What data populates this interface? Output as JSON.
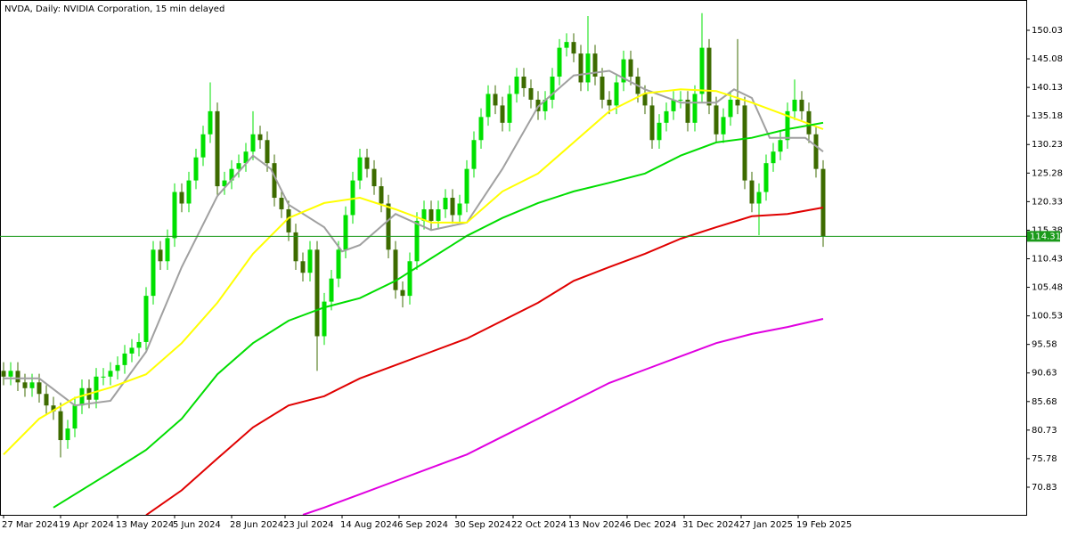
{
  "chart_data": {
    "type": "candlestick",
    "title": "NVDA, Daily:  NVIDIA Corporation, 15 min delayed",
    "xlim": [
      -1,
      287
    ],
    "ylim": [
      66.04,
      155.28
    ],
    "xticks": [
      {
        "value": 0,
        "label": "27 Mar 2024"
      },
      {
        "value": 16,
        "label": "19 Apr 2024"
      },
      {
        "value": 32,
        "label": "13 May 2024"
      },
      {
        "value": 48,
        "label": "5 Jun 2024"
      },
      {
        "value": 64,
        "label": "28 Jun 2024"
      },
      {
        "value": 79,
        "label": "23 Jul 2024"
      },
      {
        "value": 95,
        "label": "14 Aug 2024"
      },
      {
        "value": 111,
        "label": "6 Sep 2024"
      },
      {
        "value": 127,
        "label": "30 Sep 2024"
      },
      {
        "value": 143,
        "label": "22 Oct 2024"
      },
      {
        "value": 159,
        "label": "13 Nov 2024"
      },
      {
        "value": 175,
        "label": "6 Dec 2024"
      },
      {
        "value": 191,
        "label": "31 Dec 2024"
      },
      {
        "value": 207,
        "label": "27 Jan 2025"
      },
      {
        "value": 223,
        "label": "19 Feb 2025"
      }
    ],
    "yticks": [
      150.03,
      145.08,
      140.13,
      135.18,
      130.23,
      125.28,
      120.33,
      115.38,
      110.43,
      105.48,
      100.53,
      95.58,
      90.63,
      85.68,
      80.73,
      75.78,
      70.83
    ],
    "up_color": "#00e000",
    "down_color": "#3d6b00",
    "x": [
      0,
      2,
      4,
      6,
      8,
      10,
      12,
      14,
      16,
      18,
      20,
      22,
      24,
      26,
      28,
      30,
      32,
      34,
      36,
      38,
      40,
      42,
      44,
      46,
      48,
      50,
      52,
      54,
      56,
      58,
      60,
      62,
      64,
      66,
      68,
      70,
      72,
      74,
      76,
      78,
      80,
      82,
      84,
      86,
      88,
      90,
      92,
      94,
      96,
      98,
      100,
      102,
      104,
      106,
      108,
      110,
      112,
      114,
      116,
      118,
      120,
      122,
      124,
      126,
      128,
      130,
      132,
      134,
      136,
      138,
      140,
      142,
      144,
      146,
      148,
      150,
      152,
      154,
      156,
      158,
      160,
      162,
      164,
      166,
      168,
      170,
      172,
      174,
      176,
      178,
      180,
      182,
      184,
      186,
      188,
      190,
      192,
      194,
      196,
      198,
      200,
      202,
      204,
      206,
      208,
      210,
      212,
      214,
      216,
      218,
      220,
      222,
      224,
      226,
      228,
      230
    ],
    "open": [
      91,
      90,
      91,
      89,
      88,
      89,
      87,
      85,
      84,
      79,
      81,
      85,
      88,
      86,
      90,
      90,
      91,
      92,
      94,
      95,
      96,
      104,
      112,
      110,
      114,
      122,
      120,
      124,
      128,
      132,
      136,
      123,
      124,
      126,
      127,
      129,
      132,
      131,
      127,
      121,
      119,
      115,
      110,
      108,
      112,
      97,
      103,
      107,
      112,
      118,
      124,
      128,
      126,
      123,
      120,
      112,
      105,
      104,
      110,
      117,
      119,
      117,
      119,
      121,
      118,
      120,
      126,
      131,
      135,
      139,
      137,
      134,
      139,
      142,
      140,
      138,
      136,
      138,
      142,
      147,
      148,
      146,
      141,
      146,
      142,
      138,
      137,
      141,
      145,
      142,
      139,
      137,
      131,
      134,
      136,
      138,
      138,
      134,
      139,
      147,
      137,
      132,
      135,
      138,
      137,
      124,
      120,
      122,
      127,
      129,
      131,
      136,
      138,
      136,
      132,
      126
    ],
    "high": [
      92.5,
      92.5,
      92.5,
      90.5,
      90.5,
      90.5,
      88.5,
      86.5,
      85.5,
      82.5,
      86.5,
      89.5,
      89.5,
      91.5,
      91.5,
      92.5,
      93.5,
      95.5,
      96.5,
      97.5,
      105.5,
      113.5,
      113.5,
      115.5,
      123.5,
      123.5,
      125.5,
      129.5,
      133.5,
      141,
      137.5,
      125.5,
      127.5,
      128.5,
      130.5,
      136,
      133.5,
      132.5,
      128.5,
      122.5,
      120.5,
      116.5,
      111.5,
      113.5,
      113.5,
      104.5,
      108.5,
      113.5,
      119.5,
      125.5,
      129.5,
      129.5,
      127.5,
      124.5,
      121.5,
      113.5,
      106.5,
      111.5,
      118.5,
      120.5,
      120.5,
      120.5,
      122.5,
      122.5,
      121.5,
      127.5,
      132.5,
      136.5,
      140.5,
      140.5,
      138.5,
      140.5,
      143.5,
      143.5,
      141.5,
      139.5,
      139.5,
      143.5,
      148.5,
      149.5,
      149.5,
      147.5,
      152.5,
      147.5,
      143.5,
      139.5,
      142.5,
      146.5,
      146.5,
      143.5,
      140.5,
      138.5,
      135.5,
      137.5,
      139.5,
      139.5,
      139.5,
      140.5,
      153,
      148.5,
      138.5,
      136.5,
      139.5,
      148.5,
      138.5,
      125.5,
      123.5,
      128.5,
      130.5,
      132.5,
      137.5,
      141.5,
      139.5,
      137.5,
      133.5,
      127.5
    ],
    "low": [
      88.5,
      88.5,
      87.5,
      86.5,
      86.5,
      85.5,
      83.5,
      82.5,
      76,
      77.5,
      79.5,
      83.5,
      84.5,
      84.5,
      88.5,
      88.5,
      89.5,
      90.5,
      92.5,
      93.5,
      94.5,
      102.5,
      108.5,
      108.5,
      112.5,
      118.5,
      118.5,
      122.5,
      126.5,
      130.5,
      121.5,
      121.5,
      122.5,
      124.5,
      125.5,
      127.5,
      129.5,
      125.5,
      119.5,
      117.5,
      113.5,
      108.5,
      106.5,
      106.5,
      91,
      95.5,
      101.5,
      105.5,
      110.5,
      116.5,
      122.5,
      124.5,
      121.5,
      118.5,
      110.5,
      103.5,
      102,
      102.5,
      108.5,
      115.5,
      115.5,
      115.5,
      117.5,
      116.5,
      116.5,
      118.5,
      124.5,
      129.5,
      133.5,
      135.5,
      132.5,
      132.5,
      137.5,
      138.5,
      136.5,
      134.5,
      134.5,
      136.5,
      140.5,
      145.5,
      144.5,
      139.5,
      139.5,
      140.5,
      136.5,
      135.5,
      135.5,
      139.5,
      140.5,
      137.5,
      135.5,
      129.5,
      129.5,
      132.5,
      134.5,
      136.5,
      132.5,
      132.5,
      137.5,
      135.5,
      130.5,
      130.5,
      133.5,
      135.5,
      122.5,
      118.5,
      114.5,
      120.5,
      125.5,
      127.5,
      129.5,
      134.5,
      134.5,
      130.5,
      124.5,
      112.5
    ],
    "close": [
      90,
      91,
      89,
      88,
      89,
      87,
      85,
      84,
      79,
      81,
      85,
      88,
      86,
      90,
      90,
      91,
      92,
      94,
      95,
      96,
      104,
      112,
      110,
      114,
      122,
      120,
      124,
      128,
      132,
      136,
      123,
      124,
      126,
      127,
      129,
      132,
      131,
      127,
      121,
      119,
      115,
      110,
      108,
      112,
      97,
      103,
      107,
      112,
      118,
      124,
      128,
      126,
      123,
      120,
      112,
      105,
      104,
      110,
      117,
      119,
      117,
      119,
      121,
      118,
      120,
      126,
      131,
      135,
      139,
      137,
      134,
      139,
      142,
      140,
      138,
      136,
      138,
      142,
      147,
      148,
      146,
      141,
      146,
      142,
      138,
      137,
      141,
      145,
      142,
      139,
      137,
      131,
      134,
      136,
      138,
      138,
      134,
      139,
      147,
      137,
      132,
      135,
      138,
      137,
      124,
      120,
      122,
      127,
      129,
      131,
      136,
      138,
      136,
      132,
      126,
      114.31
    ],
    "lines": [
      {
        "color": "#a0a0a0",
        "x": [
          0,
          10,
          20,
          30,
          40,
          50,
          60,
          70,
          75,
          80,
          90,
          95,
          100,
          110,
          120,
          130,
          140,
          150,
          160,
          170,
          180,
          190,
          200,
          205,
          210,
          215,
          220,
          225,
          230
        ],
        "values": [
          89.7,
          89.7,
          85,
          85.8,
          94.3,
          109,
          121.3,
          128.3,
          126,
          119.8,
          115.9,
          111.7,
          112.8,
          118.2,
          115.4,
          116.7,
          126,
          136.8,
          142.2,
          143,
          139.8,
          137.5,
          137.5,
          139.8,
          138.3,
          131.4,
          131.4,
          131.4,
          129
        ]
      },
      {
        "color": "#ffff00",
        "x": [
          0,
          10,
          20,
          30,
          40,
          50,
          60,
          70,
          80,
          90,
          100,
          110,
          120,
          130,
          140,
          150,
          160,
          170,
          180,
          190,
          200,
          210,
          220,
          230
        ],
        "values": [
          76.5,
          82.7,
          86.3,
          88.1,
          90.4,
          95.8,
          102.8,
          111.3,
          117.5,
          120.1,
          121,
          119,
          116.7,
          116.7,
          122.1,
          125.2,
          130.6,
          136,
          139.1,
          139.8,
          139.5,
          137.5,
          135.2,
          132.9
        ]
      },
      {
        "color": "#00dd00",
        "x": [
          14,
          30,
          40,
          50,
          60,
          70,
          80,
          90,
          100,
          110,
          120,
          130,
          140,
          150,
          160,
          170,
          180,
          190,
          200,
          210,
          220,
          230
        ],
        "values": [
          67.3,
          73.4,
          77.3,
          82.7,
          90.4,
          95.8,
          99.7,
          102,
          103.6,
          106.6,
          110.5,
          114.4,
          117.5,
          120.1,
          122.1,
          123.6,
          125.2,
          128.3,
          130.6,
          131.4,
          132.9,
          134
        ]
      },
      {
        "color": "#e00000",
        "x": [
          40,
          50,
          60,
          70,
          80,
          90,
          100,
          110,
          120,
          130,
          140,
          150,
          160,
          170,
          180,
          190,
          200,
          210,
          220,
          230
        ],
        "values": [
          66,
          70.3,
          75.8,
          81.2,
          85,
          86.6,
          89.7,
          92,
          94.3,
          96.6,
          99.7,
          102.8,
          106.6,
          109,
          111.3,
          113.9,
          115.9,
          117.8,
          118.2,
          119.3
        ]
      },
      {
        "color": "#e000e0",
        "x": [
          84,
          90,
          100,
          110,
          120,
          130,
          140,
          150,
          160,
          170,
          180,
          190,
          200,
          210,
          220,
          230
        ],
        "values": [
          66.04,
          67.3,
          69.6,
          71.9,
          74.2,
          76.5,
          79.6,
          82.7,
          85.8,
          88.9,
          91.2,
          93.5,
          95.8,
          97.4,
          98.6,
          100
        ]
      }
    ],
    "current_price": 114.31,
    "current_price_color": "#1a9a1a"
  }
}
